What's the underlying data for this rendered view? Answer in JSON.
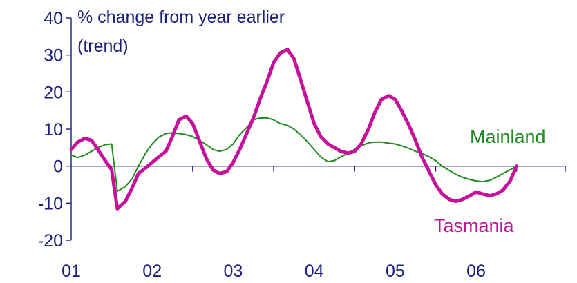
{
  "chart_data": {
    "type": "line",
    "title": "",
    "unit_label_line1": "% change from year earlier",
    "unit_label_line2": "(trend)",
    "xlabel": "",
    "ylabel": "",
    "ylim": [
      -20,
      40
    ],
    "y_ticks": [
      "40",
      "30",
      "20",
      "10",
      "0",
      "-10",
      "-20"
    ],
    "x_range": [
      2000.5,
      2006.6
    ],
    "x_categories": [
      "01",
      "02",
      "03",
      "04",
      "05",
      "06"
    ],
    "grid": false,
    "legend": "direct labels on lines",
    "series": [
      {
        "name": "Mainland",
        "color": "#1f8a1f",
        "points": [
          [
            2000.5,
            3.0
          ],
          [
            2000.58,
            2.3
          ],
          [
            2000.67,
            3.0
          ],
          [
            2000.75,
            4.0
          ],
          [
            2000.83,
            5.0
          ],
          [
            2000.92,
            5.8
          ],
          [
            2001.0,
            6.0
          ],
          [
            2001.07,
            -6.8
          ],
          [
            2001.17,
            -5.5
          ],
          [
            2001.25,
            -3.5
          ],
          [
            2001.33,
            0.0
          ],
          [
            2001.42,
            3.5
          ],
          [
            2001.5,
            6.0
          ],
          [
            2001.58,
            7.8
          ],
          [
            2001.67,
            8.8
          ],
          [
            2001.75,
            9.0
          ],
          [
            2001.83,
            8.8
          ],
          [
            2001.92,
            8.5
          ],
          [
            2002.0,
            8.0
          ],
          [
            2002.08,
            7.0
          ],
          [
            2002.17,
            5.8
          ],
          [
            2002.25,
            4.5
          ],
          [
            2002.33,
            4.0
          ],
          [
            2002.42,
            4.5
          ],
          [
            2002.5,
            6.0
          ],
          [
            2002.58,
            8.5
          ],
          [
            2002.67,
            10.5
          ],
          [
            2002.75,
            12.5
          ],
          [
            2002.83,
            13.0
          ],
          [
            2002.92,
            13.0
          ],
          [
            2003.0,
            12.5
          ],
          [
            2003.08,
            11.5
          ],
          [
            2003.17,
            11.0
          ],
          [
            2003.25,
            10.0
          ],
          [
            2003.33,
            8.5
          ],
          [
            2003.42,
            6.5
          ],
          [
            2003.5,
            4.5
          ],
          [
            2003.58,
            2.5
          ],
          [
            2003.67,
            1.2
          ],
          [
            2003.75,
            1.5
          ],
          [
            2003.83,
            2.5
          ],
          [
            2003.92,
            3.5
          ],
          [
            2004.0,
            4.5
          ],
          [
            2004.08,
            5.5
          ],
          [
            2004.17,
            6.3
          ],
          [
            2004.25,
            6.5
          ],
          [
            2004.33,
            6.5
          ],
          [
            2004.42,
            6.2
          ],
          [
            2004.5,
            6.0
          ],
          [
            2004.58,
            5.5
          ],
          [
            2004.67,
            4.8
          ],
          [
            2004.75,
            4.0
          ],
          [
            2004.83,
            3.5
          ],
          [
            2004.92,
            2.5
          ],
          [
            2005.0,
            1.5
          ],
          [
            2005.08,
            0.0
          ],
          [
            2005.17,
            -1.2
          ],
          [
            2005.25,
            -2.2
          ],
          [
            2005.33,
            -3.0
          ],
          [
            2005.42,
            -3.6
          ],
          [
            2005.5,
            -4.0
          ],
          [
            2005.58,
            -4.2
          ],
          [
            2005.67,
            -3.8
          ],
          [
            2005.75,
            -3.0
          ],
          [
            2005.83,
            -2.0
          ],
          [
            2005.92,
            -1.0
          ],
          [
            2006.0,
            0.0
          ]
        ]
      },
      {
        "name": "Tasmania",
        "color": "#c4139a",
        "points": [
          [
            2000.5,
            4.5
          ],
          [
            2000.58,
            6.5
          ],
          [
            2000.67,
            7.5
          ],
          [
            2000.75,
            7.0
          ],
          [
            2000.83,
            4.5
          ],
          [
            2000.92,
            1.5
          ],
          [
            2001.0,
            -1.0
          ],
          [
            2001.07,
            -11.5
          ],
          [
            2001.17,
            -9.5
          ],
          [
            2001.25,
            -6.0
          ],
          [
            2001.33,
            -2.0
          ],
          [
            2001.42,
            -0.5
          ],
          [
            2001.5,
            1.0
          ],
          [
            2001.58,
            2.5
          ],
          [
            2001.67,
            4.0
          ],
          [
            2001.75,
            8.0
          ],
          [
            2001.83,
            12.5
          ],
          [
            2001.92,
            13.5
          ],
          [
            2002.0,
            11.5
          ],
          [
            2002.08,
            7.0
          ],
          [
            2002.17,
            2.0
          ],
          [
            2002.25,
            -1.0
          ],
          [
            2002.33,
            -2.0
          ],
          [
            2002.42,
            -1.5
          ],
          [
            2002.5,
            1.0
          ],
          [
            2002.58,
            4.5
          ],
          [
            2002.67,
            9.0
          ],
          [
            2002.75,
            13.0
          ],
          [
            2002.83,
            18.0
          ],
          [
            2002.92,
            23.0
          ],
          [
            2003.0,
            28.0
          ],
          [
            2003.08,
            30.5
          ],
          [
            2003.17,
            31.5
          ],
          [
            2003.25,
            29.0
          ],
          [
            2003.33,
            23.5
          ],
          [
            2003.42,
            17.0
          ],
          [
            2003.5,
            11.5
          ],
          [
            2003.58,
            8.0
          ],
          [
            2003.67,
            6.0
          ],
          [
            2003.75,
            5.0
          ],
          [
            2003.83,
            4.0
          ],
          [
            2003.92,
            3.5
          ],
          [
            2004.0,
            4.0
          ],
          [
            2004.08,
            6.0
          ],
          [
            2004.17,
            10.0
          ],
          [
            2004.25,
            14.5
          ],
          [
            2004.33,
            18.0
          ],
          [
            2004.42,
            19.0
          ],
          [
            2004.5,
            18.0
          ],
          [
            2004.58,
            15.0
          ],
          [
            2004.67,
            11.0
          ],
          [
            2004.75,
            7.0
          ],
          [
            2004.83,
            2.5
          ],
          [
            2004.92,
            -1.5
          ],
          [
            2005.0,
            -5.0
          ],
          [
            2005.08,
            -7.5
          ],
          [
            2005.17,
            -9.0
          ],
          [
            2005.25,
            -9.5
          ],
          [
            2005.33,
            -9.0
          ],
          [
            2005.42,
            -8.0
          ],
          [
            2005.5,
            -7.0
          ],
          [
            2005.58,
            -7.5
          ],
          [
            2005.67,
            -8.0
          ],
          [
            2005.75,
            -7.5
          ],
          [
            2005.83,
            -6.5
          ],
          [
            2005.92,
            -4.0
          ],
          [
            2006.0,
            0.0
          ]
        ]
      }
    ]
  }
}
